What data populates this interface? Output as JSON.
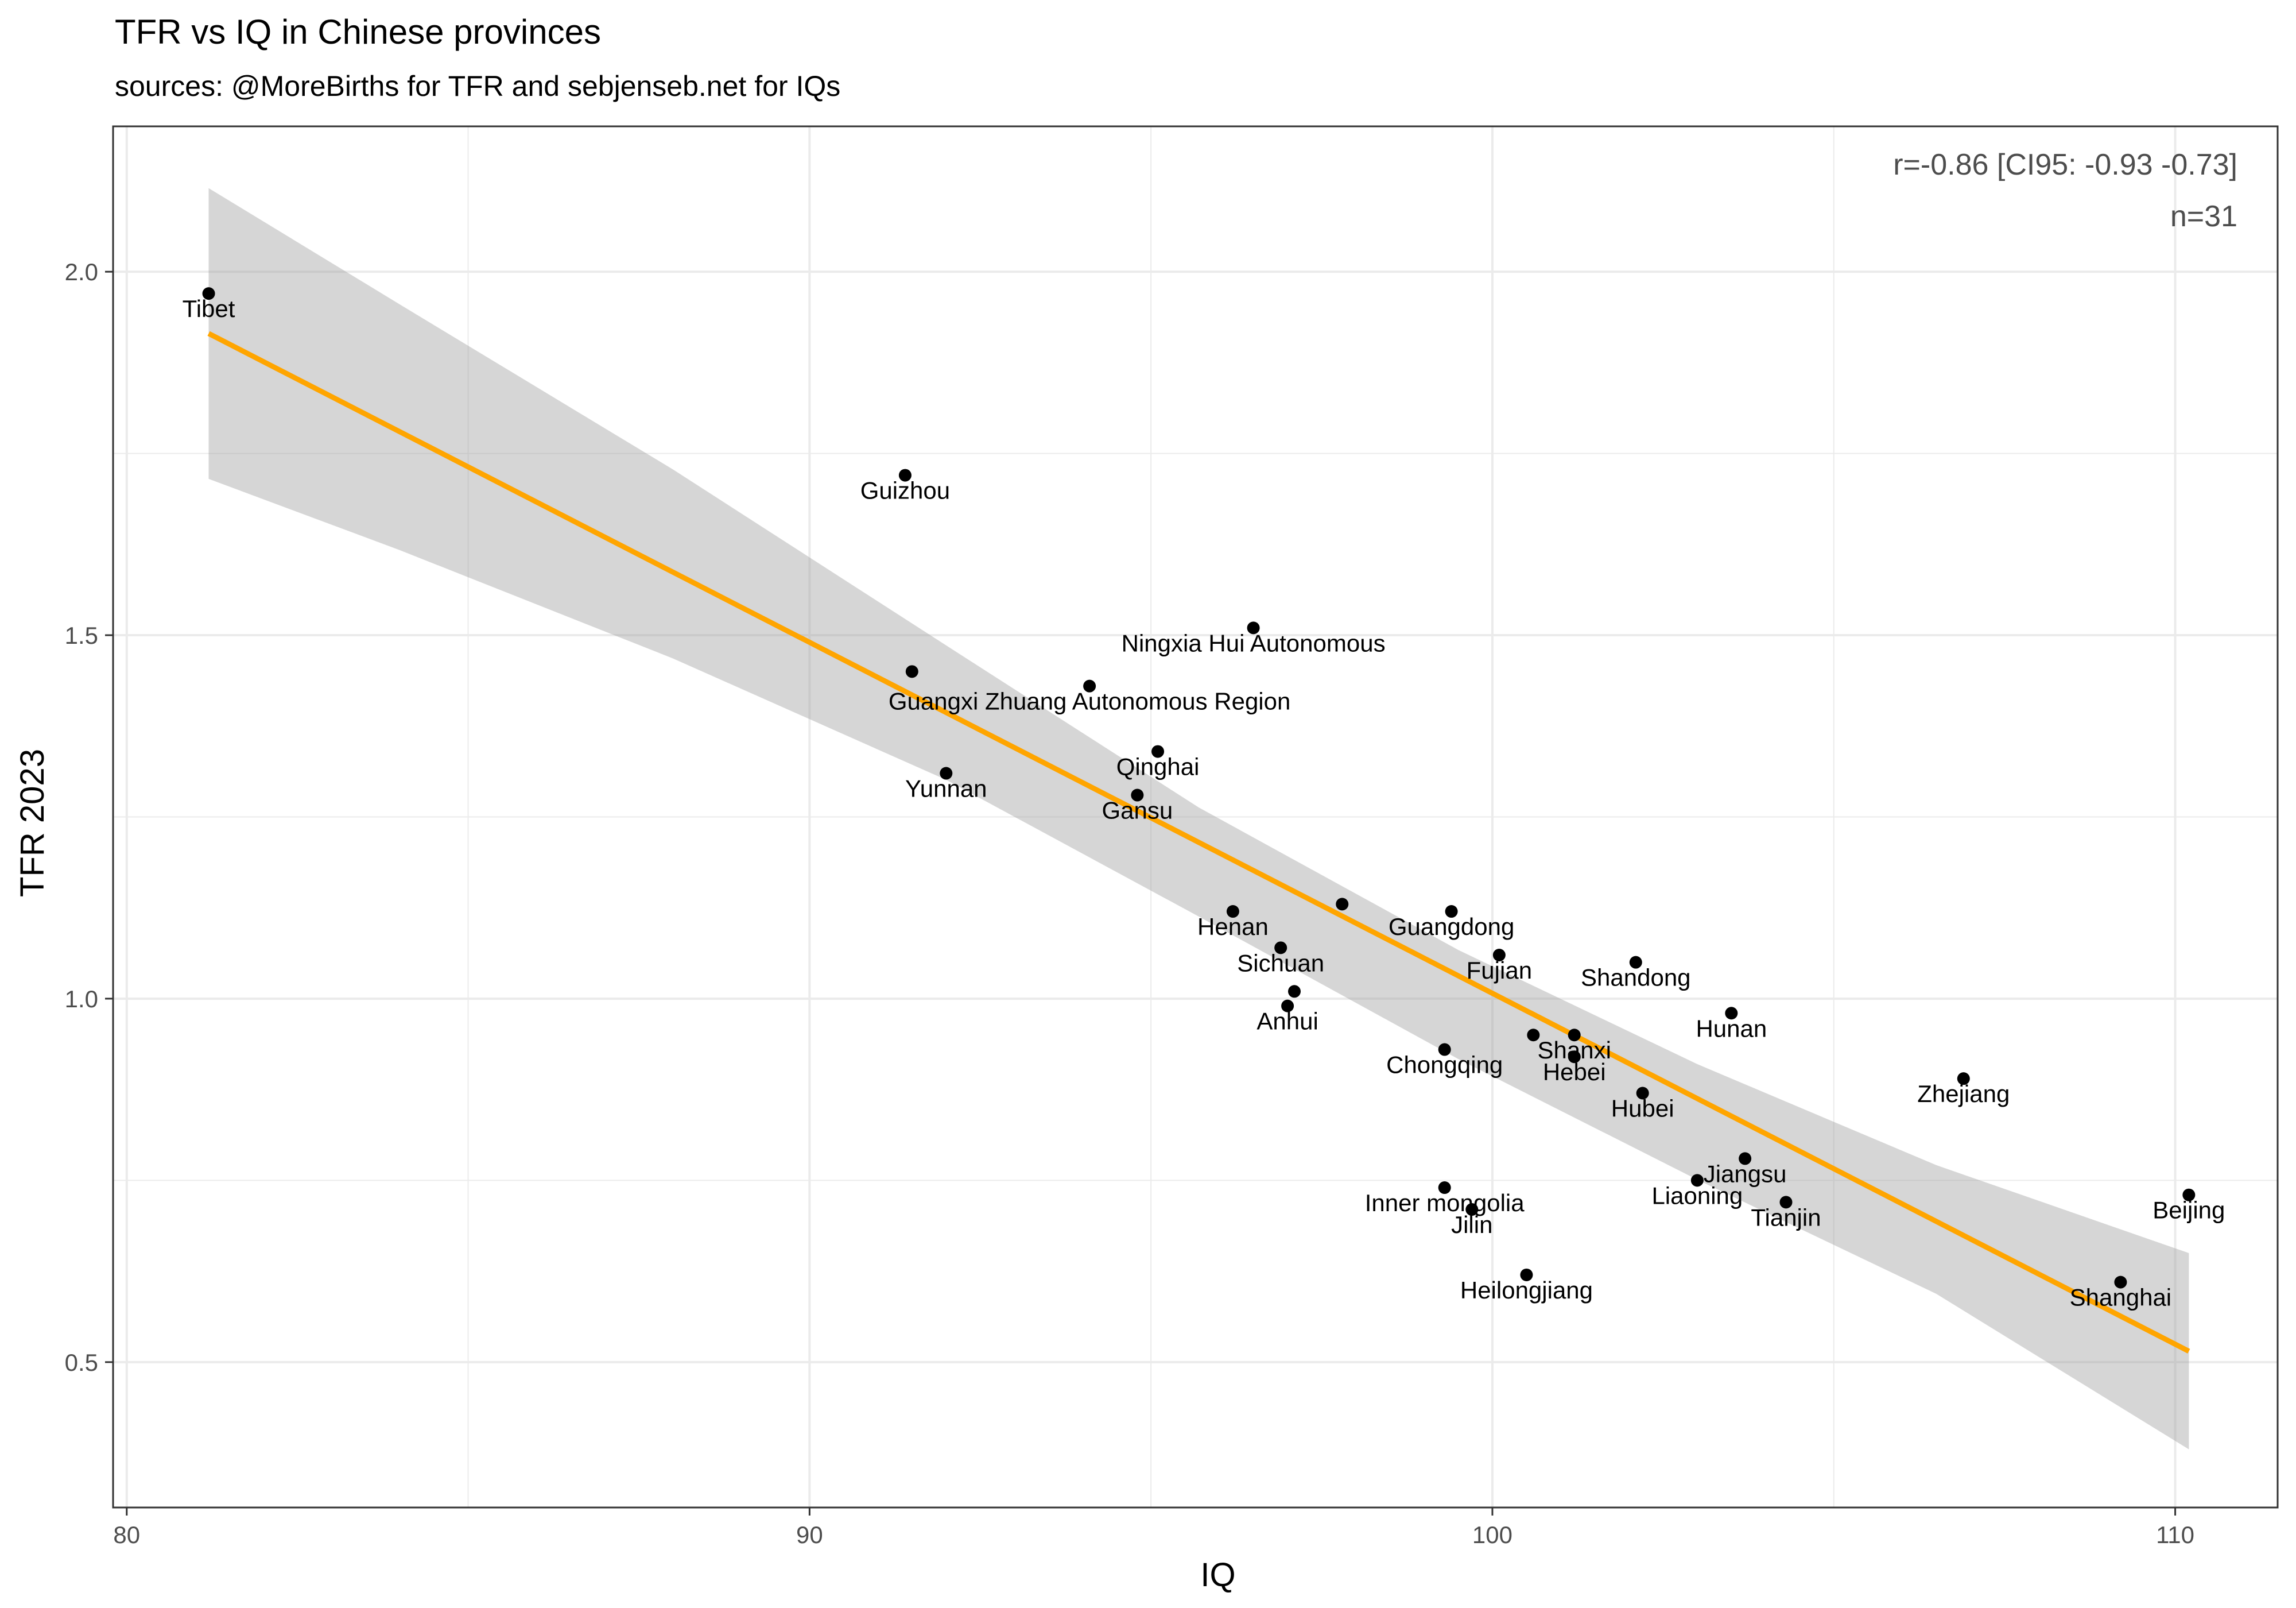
{
  "chart_data": {
    "type": "scatter",
    "title": "TFR vs IQ in Chinese provinces",
    "subtitle": "sources: @MoreBirths for TFR and sebjenseb.net for IQs",
    "xlabel": "IQ",
    "ylabel": "TFR 2023",
    "xlim": [
      79.8,
      111.5
    ],
    "ylim": [
      0.3,
      2.2
    ],
    "xticks": [
      80,
      90,
      100,
      110
    ],
    "xtick_labels": [
      "80",
      "90",
      "100",
      "110"
    ],
    "yticks": [
      0.5,
      1.0,
      1.5,
      2.0
    ],
    "ytick_labels": [
      "0.5",
      "1.0",
      "1.5",
      "2.0"
    ],
    "grid": true,
    "annotation": [
      "r=-0.86 [CI95: -0.93 -0.73]",
      "n=31"
    ],
    "colors": {
      "fit_line": "#FFA500",
      "ci_band": "#999999",
      "points": "#000000",
      "grid": "#EBEBEB",
      "panel_border": "#333333"
    },
    "fit_line": {
      "x": [
        81.2,
        110.2
      ],
      "y": [
        1.915,
        0.515
      ]
    },
    "ci_band": {
      "x": [
        81.2,
        84.0,
        88.0,
        92.0,
        95.7,
        99.5,
        103.0,
        106.5,
        110.2
      ],
      "lower": [
        1.715,
        1.617,
        1.468,
        1.301,
        1.113,
        0.917,
        0.751,
        0.594,
        0.38
      ],
      "upper": [
        2.115,
        1.955,
        1.728,
        1.486,
        1.263,
        1.067,
        0.91,
        0.771,
        0.65
      ]
    },
    "points": [
      {
        "label": "Tibet",
        "x": 81.2,
        "y": 1.97
      },
      {
        "label": "Guizhou",
        "x": 91.4,
        "y": 1.72
      },
      {
        "label": "Ningxia Hui Autonomous",
        "x": 96.5,
        "y": 1.51
      },
      {
        "label": "",
        "x": 91.5,
        "y": 1.45
      },
      {
        "label": "Guangxi Zhuang Autonomous Region",
        "x": 94.1,
        "y": 1.43
      },
      {
        "label": "Qinghai",
        "x": 95.1,
        "y": 1.34
      },
      {
        "label": "Yunnan",
        "x": 92.0,
        "y": 1.31
      },
      {
        "label": "Gansu",
        "x": 94.8,
        "y": 1.28
      },
      {
        "label": "Henan",
        "x": 96.2,
        "y": 1.12
      },
      {
        "label": "",
        "x": 97.8,
        "y": 1.13
      },
      {
        "label": "Guangdong",
        "x": 99.4,
        "y": 1.12
      },
      {
        "label": "Sichuan",
        "x": 96.9,
        "y": 1.07
      },
      {
        "label": "Fujian",
        "x": 100.1,
        "y": 1.06
      },
      {
        "label": "Shandong",
        "x": 102.1,
        "y": 1.05
      },
      {
        "label": "",
        "x": 97.1,
        "y": 1.01
      },
      {
        "label": "Anhui",
        "x": 97.0,
        "y": 0.99
      },
      {
        "label": "Hunan",
        "x": 103.5,
        "y": 0.98
      },
      {
        "label": "Shanxi",
        "x": 101.2,
        "y": 0.95
      },
      {
        "label": "",
        "x": 100.6,
        "y": 0.95
      },
      {
        "label": "Chongqing",
        "x": 99.3,
        "y": 0.93
      },
      {
        "label": "Hebei",
        "x": 101.2,
        "y": 0.92
      },
      {
        "label": "Zhejiang",
        "x": 106.9,
        "y": 0.89
      },
      {
        "label": "Hubei",
        "x": 102.2,
        "y": 0.87
      },
      {
        "label": "Jiangsu",
        "x": 103.7,
        "y": 0.78
      },
      {
        "label": "Liaoning",
        "x": 103.0,
        "y": 0.75
      },
      {
        "label": "Inner mongolia",
        "x": 99.3,
        "y": 0.74
      },
      {
        "label": "Beijing",
        "x": 110.2,
        "y": 0.73
      },
      {
        "label": "Tianjin",
        "x": 104.3,
        "y": 0.72
      },
      {
        "label": "Jilin",
        "x": 99.7,
        "y": 0.71
      },
      {
        "label": "Heilongjiang",
        "x": 100.5,
        "y": 0.62
      },
      {
        "label": "Shanghai",
        "x": 109.2,
        "y": 0.61
      }
    ]
  }
}
